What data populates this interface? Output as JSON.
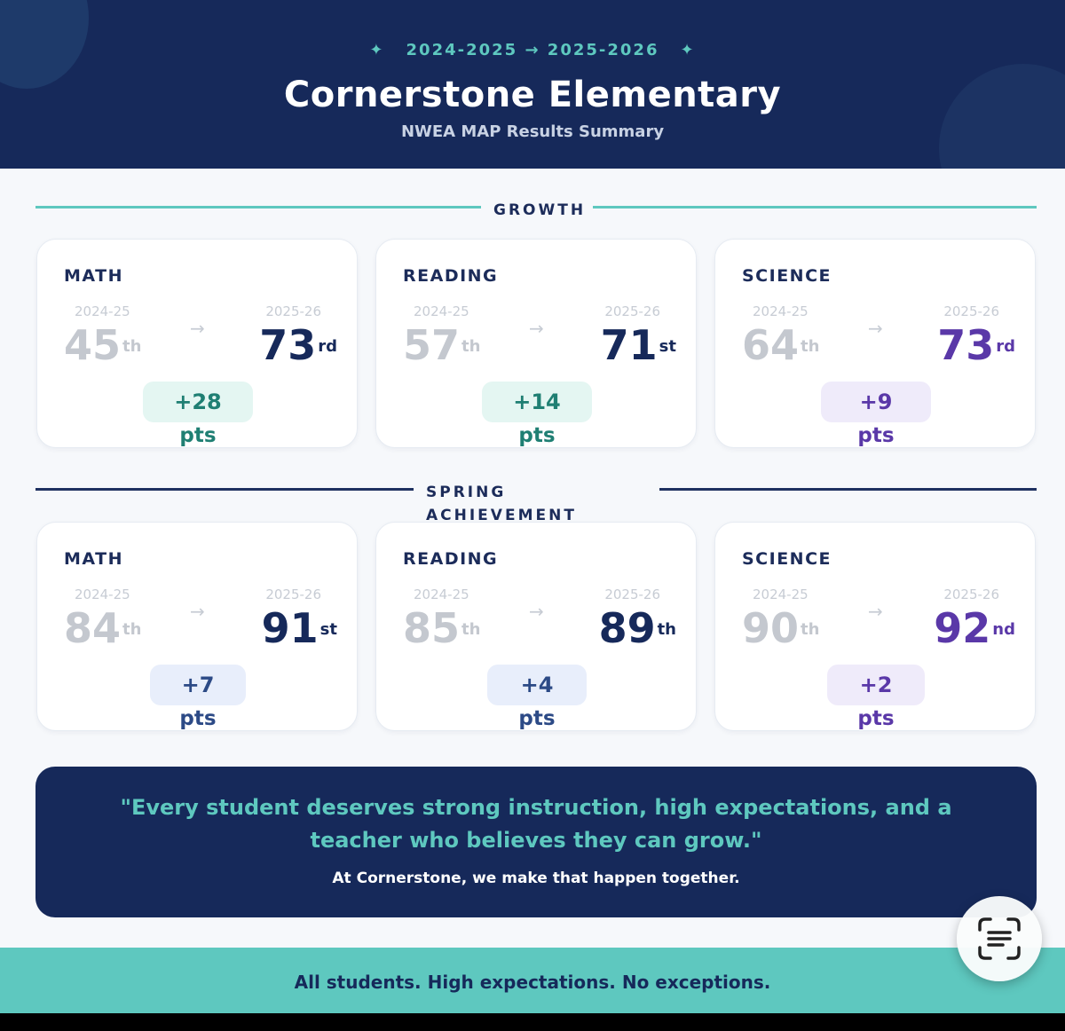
{
  "header": {
    "years": "2024-2025 → 2025-2026",
    "star_glyph": "✦",
    "title": "Cornerstone Elementary",
    "subtitle": "NWEA MAP Results Summary"
  },
  "sections": {
    "growth_label": "GROWTH",
    "spring_label_1": "SPRING",
    "spring_label_2": "ACHIEVEMENT"
  },
  "arrow_glyph": "→",
  "growth": [
    {
      "subject": "MATH",
      "old_year": "2024-25",
      "new_year": "2025-26",
      "old_value": "45",
      "old_suffix": "th",
      "new_value": "73",
      "new_suffix": "rd",
      "delta": "+28",
      "unit": "pts"
    },
    {
      "subject": "READING",
      "old_year": "2024-25",
      "new_year": "2025-26",
      "old_value": "57",
      "old_suffix": "th",
      "new_value": "71",
      "new_suffix": "st",
      "delta": "+14",
      "unit": "pts"
    },
    {
      "subject": "SCIENCE",
      "old_year": "2024-25",
      "new_year": "2025-26",
      "old_value": "64",
      "old_suffix": "th",
      "new_value": "73",
      "new_suffix": "rd",
      "delta": "+9",
      "unit": "pts"
    }
  ],
  "achievement": [
    {
      "subject": "MATH",
      "old_year": "2024-25",
      "new_year": "2025-26",
      "old_value": "84",
      "old_suffix": "th",
      "new_value": "91",
      "new_suffix": "st",
      "delta": "+7",
      "unit": "pts"
    },
    {
      "subject": "READING",
      "old_year": "2024-25",
      "new_year": "2025-26",
      "old_value": "85",
      "old_suffix": "th",
      "new_value": "89",
      "new_suffix": "th",
      "delta": "+4",
      "unit": "pts"
    },
    {
      "subject": "SCIENCE",
      "old_year": "2024-25",
      "new_year": "2025-26",
      "old_value": "90",
      "old_suffix": "th",
      "new_value": "92",
      "new_suffix": "nd",
      "delta": "+2",
      "unit": "pts"
    }
  ],
  "quote": {
    "text": "\"Every student deserves strong instruction, high expectations, and a teacher who believes they can grow.\"",
    "sub": "At Cornerstone, we make that happen together."
  },
  "footer": {
    "text": "All students. High expectations. No exceptions."
  },
  "colors": {
    "navy": "#16295a",
    "teal": "#5ec8bf",
    "purple": "#5a38a8"
  },
  "floating_button": {
    "icon": "text-scan-icon"
  }
}
